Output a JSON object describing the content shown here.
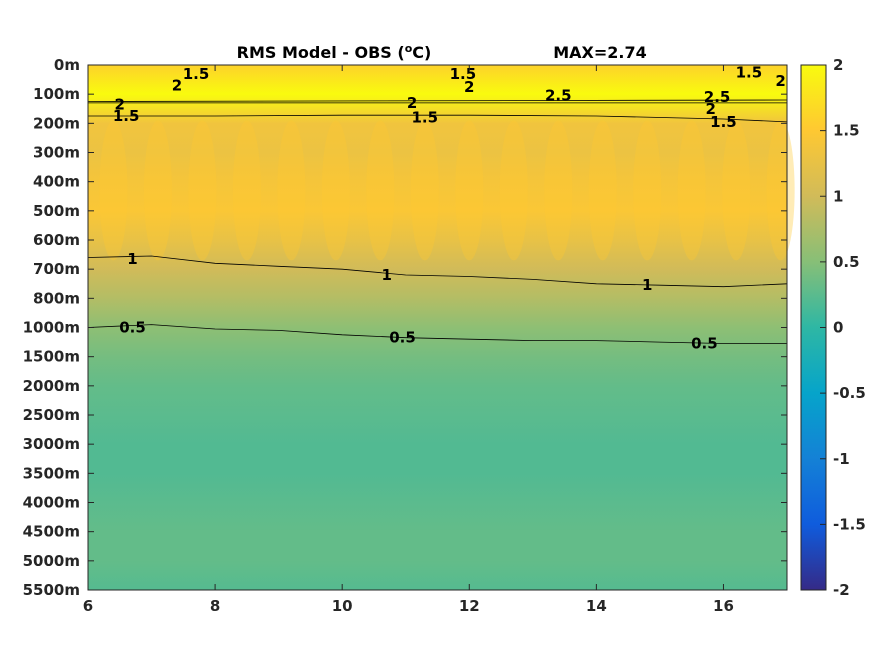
{
  "chart_data": {
    "type": "heatmap",
    "title": "RMS Model - OBS (",
    "title_unit": "o",
    "title_unit_tail": "C)",
    "max_label": "MAX=2.74",
    "x_ticks": [
      6,
      8,
      10,
      12,
      14,
      16
    ],
    "xlim": [
      6,
      17
    ],
    "y_tick_labels": [
      "0m",
      "100m",
      "200m",
      "300m",
      "400m",
      "500m",
      "600m",
      "700m",
      "800m",
      "1000m",
      "1500m",
      "2000m",
      "2500m",
      "3000m",
      "3500m",
      "4000m",
      "4500m",
      "5000m",
      "5500m"
    ],
    "colorbar_ticks": [
      "2",
      "1.5",
      "1",
      "0.5",
      "0",
      "-0.5",
      "-1",
      "-1.5",
      "-2"
    ],
    "clim": [
      -2,
      2
    ],
    "colormap": "parula",
    "colormap_stops": [
      "#352a87",
      "#0f5cdd",
      "#1481d6",
      "#06a4ca",
      "#2eb7a4",
      "#87bf77",
      "#d1bb59",
      "#fec832",
      "#f9fb0e"
    ],
    "depth_profile": [
      {
        "depth": "0m",
        "value": 1.6
      },
      {
        "depth": "100m",
        "value": 2.0
      },
      {
        "depth": "200m",
        "value": 1.35
      },
      {
        "depth": "300m",
        "value": 1.3
      },
      {
        "depth": "400m",
        "value": 1.4
      },
      {
        "depth": "500m",
        "value": 1.45
      },
      {
        "depth": "600m",
        "value": 1.25
      },
      {
        "depth": "700m",
        "value": 1.0
      },
      {
        "depth": "800m",
        "value": 0.8
      },
      {
        "depth": "1000m",
        "value": 0.55
      },
      {
        "depth": "1500m",
        "value": 0.4
      },
      {
        "depth": "2000m",
        "value": 0.3
      },
      {
        "depth": "2500m",
        "value": 0.25
      },
      {
        "depth": "3000m",
        "value": 0.2
      },
      {
        "depth": "3500m",
        "value": 0.2
      },
      {
        "depth": "4000m",
        "value": 0.25
      },
      {
        "depth": "4500m",
        "value": 0.3
      },
      {
        "depth": "5000m",
        "value": 0.3
      },
      {
        "depth": "5500m",
        "value": 0.22
      }
    ],
    "contour_labels": [
      {
        "text": "1.5",
        "x": 7.7,
        "depth_index": 0.3
      },
      {
        "text": "2",
        "x": 7.4,
        "depth_index": 0.7
      },
      {
        "text": "1.5",
        "x": 11.9,
        "depth_index": 0.3
      },
      {
        "text": "2",
        "x": 12.0,
        "depth_index": 0.75
      },
      {
        "text": "1.5",
        "x": 16.4,
        "depth_index": 0.25
      },
      {
        "text": "2",
        "x": 16.9,
        "depth_index": 0.55
      },
      {
        "text": "2",
        "x": 6.5,
        "depth_index": 1.35
      },
      {
        "text": "2",
        "x": 11.1,
        "depth_index": 1.3
      },
      {
        "text": "2.5",
        "x": 13.4,
        "depth_index": 1.05
      },
      {
        "text": "2.5",
        "x": 15.9,
        "depth_index": 1.1
      },
      {
        "text": "2",
        "x": 15.8,
        "depth_index": 1.5
      },
      {
        "text": "1.5",
        "x": 6.6,
        "depth_index": 1.75
      },
      {
        "text": "1.5",
        "x": 11.3,
        "depth_index": 1.8
      },
      {
        "text": "1.5",
        "x": 16.0,
        "depth_index": 1.95
      },
      {
        "text": "1",
        "x": 6.7,
        "depth_index": 6.65
      },
      {
        "text": "1",
        "x": 10.7,
        "depth_index": 7.2
      },
      {
        "text": "1",
        "x": 14.8,
        "depth_index": 7.55
      },
      {
        "text": "0.5",
        "x": 6.7,
        "depth_index": 9.0
      },
      {
        "text": "0.5",
        "x": 10.95,
        "depth_index": 9.35
      },
      {
        "text": "0.5",
        "x": 15.7,
        "depth_index": 9.55
      }
    ],
    "contour_lines": [
      {
        "level": 1.5,
        "points": [
          [
            6,
            1.3
          ],
          [
            17,
            1.3
          ]
        ]
      },
      {
        "level": 2,
        "points": [
          [
            6,
            1.25
          ],
          [
            17,
            1.2
          ]
        ]
      },
      {
        "level": 1.5,
        "points": [
          [
            6,
            1.75
          ],
          [
            8,
            1.75
          ],
          [
            10,
            1.72
          ],
          [
            12,
            1.72
          ],
          [
            14,
            1.75
          ],
          [
            16,
            1.85
          ],
          [
            17,
            1.95
          ]
        ]
      },
      {
        "level": 1,
        "points": [
          [
            6,
            6.6
          ],
          [
            7,
            6.55
          ],
          [
            8,
            6.8
          ],
          [
            9,
            6.9
          ],
          [
            10,
            7.0
          ],
          [
            11,
            7.2
          ],
          [
            12,
            7.25
          ],
          [
            13,
            7.35
          ],
          [
            14,
            7.5
          ],
          [
            15,
            7.55
          ],
          [
            16,
            7.6
          ],
          [
            17,
            7.5
          ]
        ]
      },
      {
        "level": 0.5,
        "points": [
          [
            6,
            9.0
          ],
          [
            7,
            8.9
          ],
          [
            8,
            9.05
          ],
          [
            9,
            9.1
          ],
          [
            10,
            9.25
          ],
          [
            11,
            9.35
          ],
          [
            12,
            9.4
          ],
          [
            13,
            9.45
          ],
          [
            14,
            9.45
          ],
          [
            15,
            9.5
          ],
          [
            16,
            9.55
          ],
          [
            17,
            9.55
          ]
        ]
      }
    ]
  }
}
